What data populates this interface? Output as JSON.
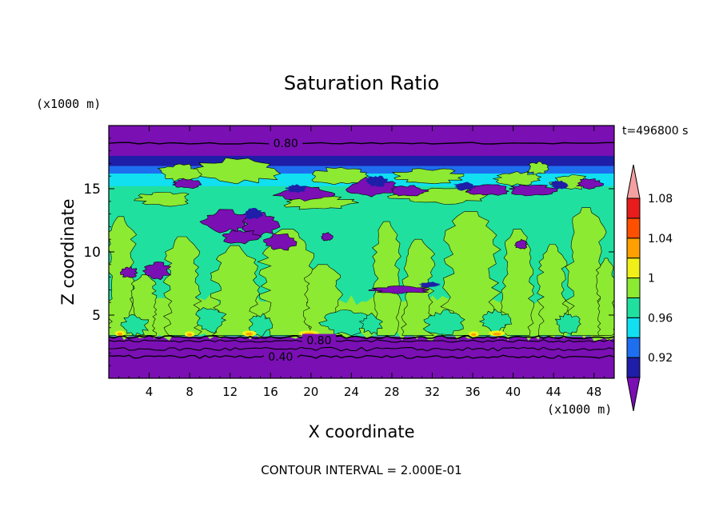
{
  "chart_data": {
    "type": "heatmap",
    "title": "Saturation Ratio",
    "xlabel": "X coordinate",
    "ylabel": "Z coordinate",
    "x_unit_label": "(x1000 m)",
    "y_unit_label": "(x1000 m)",
    "time_label": "t=496800 s",
    "contour_interval_label": "CONTOUR INTERVAL = 2.000E-01",
    "xlim": [
      0,
      50
    ],
    "ylim": [
      0,
      20
    ],
    "x_ticks": [
      4,
      8,
      12,
      16,
      20,
      24,
      28,
      32,
      36,
      40,
      44,
      48
    ],
    "y_ticks": [
      5,
      10,
      15
    ],
    "contour_labels": [
      {
        "text": "0.80",
        "x": 17.5,
        "y": 18.6
      },
      {
        "text": "0.80",
        "x": 20.8,
        "y": 3.0
      },
      {
        "text": "0.40",
        "x": 17.0,
        "y": 1.7
      }
    ],
    "colorbar": {
      "levels": [
        0.9,
        0.92,
        0.94,
        0.96,
        0.98,
        1.0,
        1.02,
        1.04,
        1.06,
        1.08,
        1.1
      ],
      "tick_labels": [
        "0.92",
        "0.96",
        "1",
        "1.04",
        "1.08"
      ],
      "colors": [
        "#7a0fb4",
        "#1e1ea8",
        "#1e6ef0",
        "#10e0f0",
        "#20e0a0",
        "#8cea32",
        "#f0f018",
        "#ffa000",
        "#ff5000",
        "#e81c1c",
        "#f4a0a0"
      ]
    },
    "field_colors": {
      "below_range": "#7a0fb4",
      "r092": "#1e1ea8",
      "r094": "#1e6ef0",
      "r096": "#10e0f0",
      "r098": "#20e0a0",
      "r100": "#8cea32",
      "r102": "#f0f018",
      "r104": "#ffa000",
      "r106": "#ff5000"
    },
    "regions": {
      "stratosphere_top": [
        0,
        50,
        18.2,
        20
      ],
      "upper_cloud_band": [
        0,
        50,
        15.0,
        17.5
      ],
      "middle_layer": [
        0,
        50,
        3.5,
        14.5
      ],
      "boundary_layer": [
        0,
        50,
        0,
        3.3
      ]
    }
  }
}
